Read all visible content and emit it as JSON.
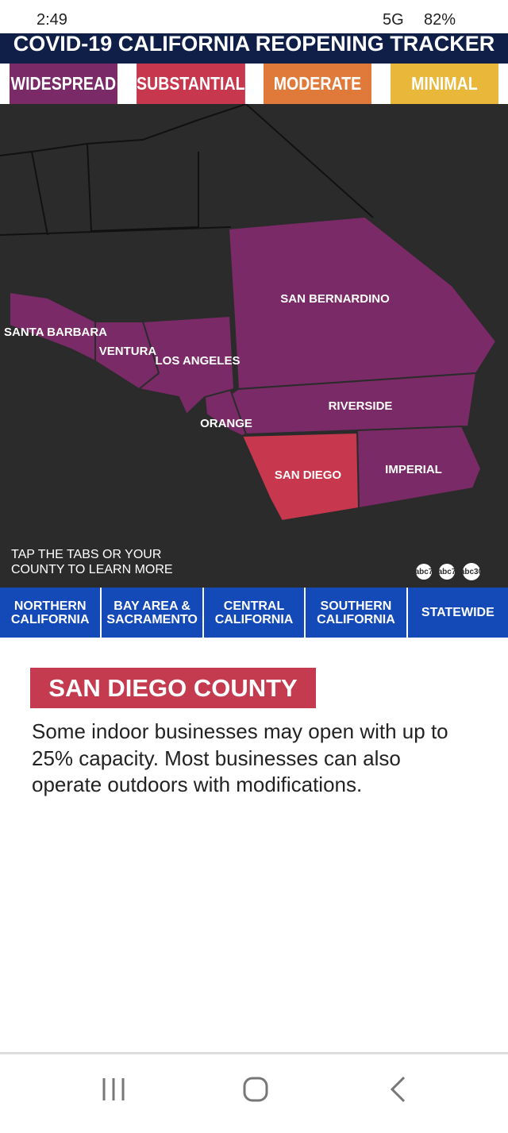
{
  "status_bar": {
    "time": "2:49",
    "network": "5G",
    "battery": "82%"
  },
  "header": {
    "title": "COVID-19 CALIFORNIA REOPENING TRACKER"
  },
  "tiers": [
    "WIDESPREAD",
    "SUBSTANTIAL",
    "MODERATE",
    "MINIMAL"
  ],
  "map": {
    "counties": [
      "SAN BERNARDINO",
      "SANTA BARBARA",
      "VENTURA",
      "LOS ANGELES",
      "RIVERSIDE",
      "ORANGE",
      "SAN DIEGO",
      "IMPERIAL"
    ],
    "hint": "TAP THE TABS OR YOUR COUNTY TO LEARN MORE",
    "logos": [
      "abc7",
      "abc7",
      "abc30"
    ]
  },
  "regions": [
    "NORTHERN CALIFORNIA",
    "BAY AREA & SACRAMENTO",
    "CENTRAL CALIFORNIA",
    "SOUTHERN CALIFORNIA",
    "STATEWIDE"
  ],
  "detail": {
    "title": "SAN DIEGO COUNTY",
    "text": "Some indoor businesses may open with up to 25% capacity. Most businesses can also operate outdoors with modifications."
  }
}
